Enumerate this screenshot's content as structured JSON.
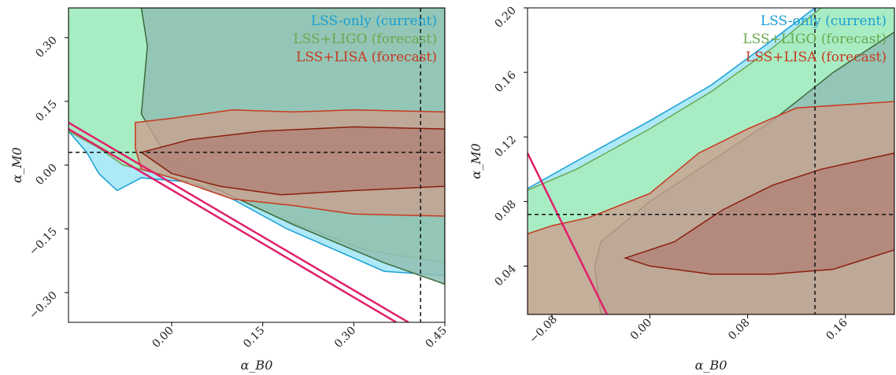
{
  "colors": {
    "lss": "#1a9fd4",
    "ligo": "#6aa84f",
    "lisa": "#c8381f",
    "lss_fill": "#aee9f7",
    "ligo_fill": "#a8ecc4",
    "lisa_fill": "#b1867a",
    "lisa_outer_fill": "#c9a090",
    "degenerate_line": "#e0206a",
    "dashed": "#111111"
  },
  "chart_data": [
    {
      "type": "area",
      "xlabel": "α_B0",
      "ylabel": "α_M0",
      "xlim": [
        -0.17,
        0.45
      ],
      "ylim": [
        -0.37,
        0.37
      ],
      "xticks": [
        0.0,
        0.15,
        0.3,
        0.45
      ],
      "xtick_labels": [
        "0.00",
        "0.15",
        "0.30",
        "0.45"
      ],
      "yticks": [
        -0.3,
        -0.15,
        0.0,
        0.15,
        0.3
      ],
      "ytick_labels": [
        "−0.30",
        "−0.15",
        "0.00",
        "0.15",
        "0.30"
      ],
      "legend_position": "top-right",
      "legend": [
        "LSS-only (current)",
        "LSS+LIGO (forecast)",
        "LSS+LISA (forecast)"
      ],
      "fiducial": {
        "x": 0.41,
        "y": 0.03
      },
      "lss_outer": [
        [
          -0.03,
          0.37
        ],
        [
          0.45,
          0.37
        ],
        [
          0.45,
          -0.26
        ],
        [
          0.35,
          -0.25
        ],
        [
          0.19,
          -0.15
        ],
        [
          0.1,
          -0.08
        ],
        [
          0.03,
          -0.04
        ],
        [
          -0.05,
          -0.03
        ],
        [
          -0.09,
          -0.06
        ],
        [
          -0.12,
          -0.02
        ],
        [
          -0.14,
          0.03
        ],
        [
          -0.17,
          0.08
        ],
        [
          -0.17,
          0.37
        ]
      ],
      "ligo_outer": [
        [
          -0.03,
          0.37
        ],
        [
          0.45,
          0.37
        ],
        [
          0.45,
          -0.23
        ],
        [
          0.32,
          -0.2
        ],
        [
          0.17,
          -0.12
        ],
        [
          0.08,
          -0.06
        ],
        [
          -0.02,
          -0.02
        ],
        [
          -0.08,
          0.0
        ],
        [
          -0.12,
          0.04
        ],
        [
          -0.17,
          0.08
        ],
        [
          -0.17,
          0.37
        ]
      ],
      "lss_inner": [
        [
          -0.05,
          0.37
        ],
        [
          0.45,
          0.37
        ],
        [
          0.45,
          -0.28
        ],
        [
          0.35,
          -0.23
        ],
        [
          0.2,
          -0.14
        ],
        [
          0.08,
          -0.06
        ],
        [
          0.0,
          0.0
        ],
        [
          -0.05,
          0.12
        ],
        [
          -0.04,
          0.28
        ]
      ],
      "lisa_outer": [
        [
          -0.06,
          0.1
        ],
        [
          0.0,
          0.11
        ],
        [
          0.1,
          0.13
        ],
        [
          0.2,
          0.125
        ],
        [
          0.3,
          0.13
        ],
        [
          0.45,
          0.125
        ],
        [
          0.45,
          -0.12
        ],
        [
          0.3,
          -0.115
        ],
        [
          0.2,
          -0.095
        ],
        [
          0.1,
          -0.08
        ],
        [
          0.0,
          -0.03
        ],
        [
          -0.05,
          -0.01
        ],
        [
          -0.06,
          0.04
        ]
      ],
      "lisa_inner": [
        [
          -0.05,
          0.03
        ],
        [
          0.03,
          0.06
        ],
        [
          0.15,
          0.08
        ],
        [
          0.3,
          0.09
        ],
        [
          0.45,
          0.085
        ],
        [
          0.45,
          -0.05
        ],
        [
          0.3,
          -0.06
        ],
        [
          0.18,
          -0.07
        ],
        [
          0.08,
          -0.05
        ],
        [
          0.0,
          -0.02
        ]
      ],
      "degenerate_lines": [
        {
          "x": [
            -0.17,
            0.39
          ],
          "y": [
            0.1,
            -0.37
          ]
        },
        {
          "x": [
            -0.17,
            0.37
          ],
          "y": [
            0.085,
            -0.37
          ]
        }
      ]
    },
    {
      "type": "area",
      "xlabel": "α_B0",
      "ylabel": "α_M0",
      "xlim": [
        -0.1,
        0.2
      ],
      "ylim": [
        0.01,
        0.2
      ],
      "xticks": [
        -0.08,
        0.0,
        0.08,
        0.16
      ],
      "xtick_labels": [
        "−0.08",
        "0.00",
        "0.08",
        "0.16"
      ],
      "yticks": [
        0.04,
        0.08,
        0.12,
        0.16,
        0.2
      ],
      "ytick_labels": [
        "0.04",
        "0.08",
        "0.12",
        "0.16",
        "0.20"
      ],
      "legend_position": "top-right",
      "legend": [
        "LSS-only (current)",
        "LSS+LIGO (forecast)",
        "LSS+LISA (forecast)"
      ],
      "fiducial": {
        "x": 0.135,
        "y": 0.072
      },
      "lss_outer": [
        [
          -0.1,
          0.088
        ],
        [
          -0.06,
          0.105
        ],
        [
          0.0,
          0.13
        ],
        [
          0.05,
          0.152
        ],
        [
          0.1,
          0.18
        ],
        [
          0.135,
          0.2
        ],
        [
          0.2,
          0.2
        ],
        [
          0.2,
          0.01
        ],
        [
          -0.1,
          0.01
        ]
      ],
      "ligo_outer": [
        [
          -0.1,
          0.087
        ],
        [
          -0.06,
          0.1
        ],
        [
          0.0,
          0.125
        ],
        [
          0.05,
          0.148
        ],
        [
          0.1,
          0.175
        ],
        [
          0.14,
          0.2
        ],
        [
          0.2,
          0.2
        ],
        [
          0.2,
          0.01
        ],
        [
          -0.1,
          0.01
        ]
      ],
      "lss_inner": [
        [
          -0.04,
          0.01
        ],
        [
          -0.045,
          0.04
        ],
        [
          -0.04,
          0.055
        ],
        [
          0.0,
          0.08
        ],
        [
          0.05,
          0.105
        ],
        [
          0.1,
          0.13
        ],
        [
          0.15,
          0.16
        ],
        [
          0.2,
          0.185
        ],
        [
          0.2,
          0.01
        ]
      ],
      "lisa_outer": [
        [
          -0.1,
          0.06
        ],
        [
          -0.08,
          0.065
        ],
        [
          -0.05,
          0.07
        ],
        [
          0.0,
          0.085
        ],
        [
          0.04,
          0.11
        ],
        [
          0.08,
          0.125
        ],
        [
          0.12,
          0.138
        ],
        [
          0.16,
          0.14
        ],
        [
          0.2,
          0.142
        ],
        [
          0.2,
          0.01
        ],
        [
          -0.1,
          0.01
        ]
      ],
      "lisa_inner": [
        [
          -0.02,
          0.045
        ],
        [
          0.02,
          0.055
        ],
        [
          0.06,
          0.075
        ],
        [
          0.1,
          0.09
        ],
        [
          0.14,
          0.1
        ],
        [
          0.2,
          0.11
        ],
        [
          0.2,
          0.05
        ],
        [
          0.15,
          0.038
        ],
        [
          0.1,
          0.035
        ],
        [
          0.05,
          0.035
        ],
        [
          0.0,
          0.04
        ]
      ],
      "degenerate_lines": [
        {
          "x": [
            -0.1,
            -0.035
          ],
          "y": [
            0.11,
            0.01
          ]
        },
        {
          "x": [
            0.0,
            0.0
          ],
          "y": [
            0.01,
            0.01
          ]
        }
      ]
    }
  ]
}
